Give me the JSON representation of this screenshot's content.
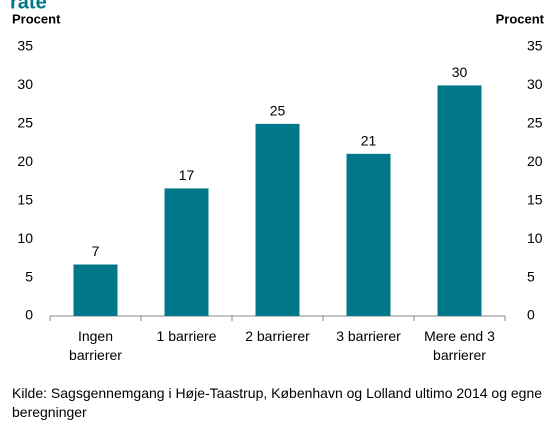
{
  "chart_data": {
    "type": "bar",
    "title": "rate",
    "y_label": "Procent",
    "y2_label": "Procent",
    "categories": [
      "Ingen barrierer",
      "1 barriere",
      "2 barrierer",
      "3 barrierer",
      "Mere end 3 barrierer"
    ],
    "values": [
      6.7,
      16.6,
      25,
      21.1,
      30
    ],
    "value_labels": [
      "7",
      "17",
      "25",
      "21",
      "30"
    ],
    "color": "#00788a",
    "ylim": [
      0,
      35
    ],
    "yticks": [
      0,
      5,
      10,
      15,
      20,
      25,
      30,
      35
    ],
    "y2lim": [
      0,
      35
    ],
    "y2ticks": [
      0,
      5,
      10,
      15,
      20,
      25,
      30,
      35
    ],
    "grid": false,
    "source": "Kilde: Sagsgennemgang i Høje-Taastrup, København og Lolland ultimo 2014 og egne beregninger"
  }
}
